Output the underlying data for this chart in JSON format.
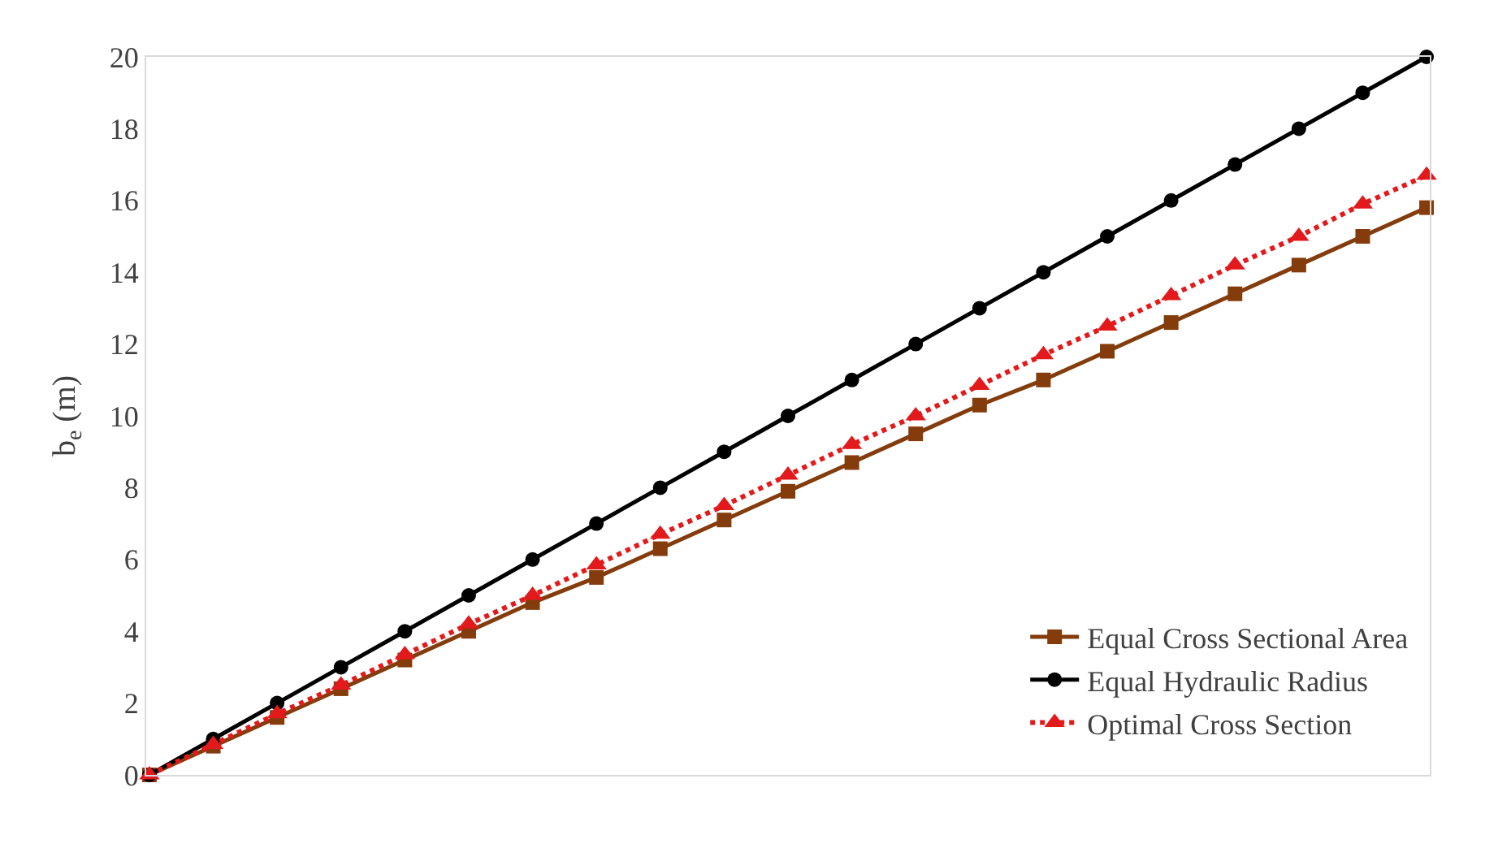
{
  "chart_data": {
    "type": "line",
    "ylabel": "b$_{e}$ (m)",
    "categories": [
      null,
      null,
      null,
      null,
      null,
      null,
      null,
      null,
      null,
      null,
      null,
      null,
      null,
      null,
      null,
      null,
      null,
      null,
      null,
      null,
      null
    ],
    "series": [
      {
        "name": "Equal Cross Sectional Area",
        "color": "#843c0c",
        "marker": "square",
        "line_style": "solid",
        "values": [
          0,
          0.8,
          1.6,
          2.4,
          3.2,
          4.0,
          4.8,
          5.5,
          6.3,
          7.1,
          7.9,
          8.7,
          9.5,
          10.3,
          11.0,
          11.8,
          12.6,
          13.4,
          14.2,
          15.0,
          15.8
        ]
      },
      {
        "name": "Equal Hydraulic Radius",
        "color": "#000000",
        "marker": "circle",
        "line_style": "solid",
        "values": [
          0,
          1,
          2,
          3,
          4,
          5,
          6,
          7,
          8,
          9,
          10,
          11,
          12,
          13,
          14,
          15,
          16,
          17,
          18,
          19,
          20
        ]
      },
      {
        "name": "Optimal Cross Section",
        "color": "#e31a1c",
        "marker": "triangle",
        "line_style": "dotted",
        "values": [
          0,
          0.85,
          1.7,
          2.5,
          3.35,
          4.2,
          5.0,
          5.85,
          6.7,
          7.5,
          8.35,
          9.2,
          10.0,
          10.85,
          11.7,
          12.5,
          13.35,
          14.2,
          15.0,
          15.9,
          16.7
        ]
      }
    ],
    "ylim": [
      0,
      20
    ],
    "yticks": [
      0,
      2,
      4,
      6,
      8,
      10,
      12,
      14,
      16,
      18,
      20
    ],
    "legend": "bottom right",
    "tick_labels": "y"
  }
}
